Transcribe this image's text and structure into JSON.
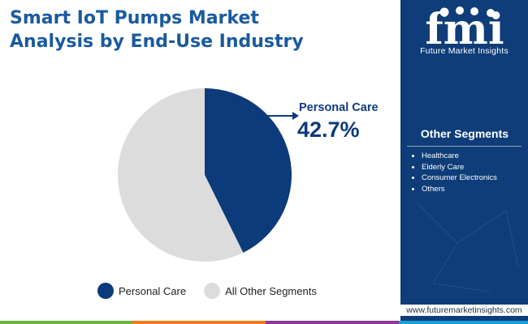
{
  "header": {
    "title_line1": "Smart IoT Pumps Market",
    "title_line2": "Analysis by End-Use Industry"
  },
  "chart_data": {
    "type": "pie",
    "categories": [
      "Personal Care",
      "All Other Segments"
    ],
    "values": [
      42.7,
      57.3
    ],
    "colors": [
      "#0c3b7c",
      "#dcdcdc"
    ],
    "callout": {
      "label": "Personal Care",
      "value": "42.7%"
    },
    "legend_position": "bottom"
  },
  "legend": {
    "items": [
      {
        "label": "Personal Care",
        "color": "#0c3b7c"
      },
      {
        "label": "All Other Segments",
        "color": "#dcdcdc"
      }
    ]
  },
  "sidebar": {
    "logo_text": "fmi",
    "brand": "Future Market Insights",
    "segments_title": "Other Segments",
    "segments": [
      "Healthcare",
      "Elderly Care",
      "Consumer Electronics",
      "Others"
    ],
    "colors": {
      "panel": "#0e3d79"
    }
  },
  "footer": {
    "url": "www.futuremarketinsights.com",
    "stripe_colors": [
      "#6db33f",
      "#f47920",
      "#8e3a96",
      "#1aa0d8"
    ]
  }
}
